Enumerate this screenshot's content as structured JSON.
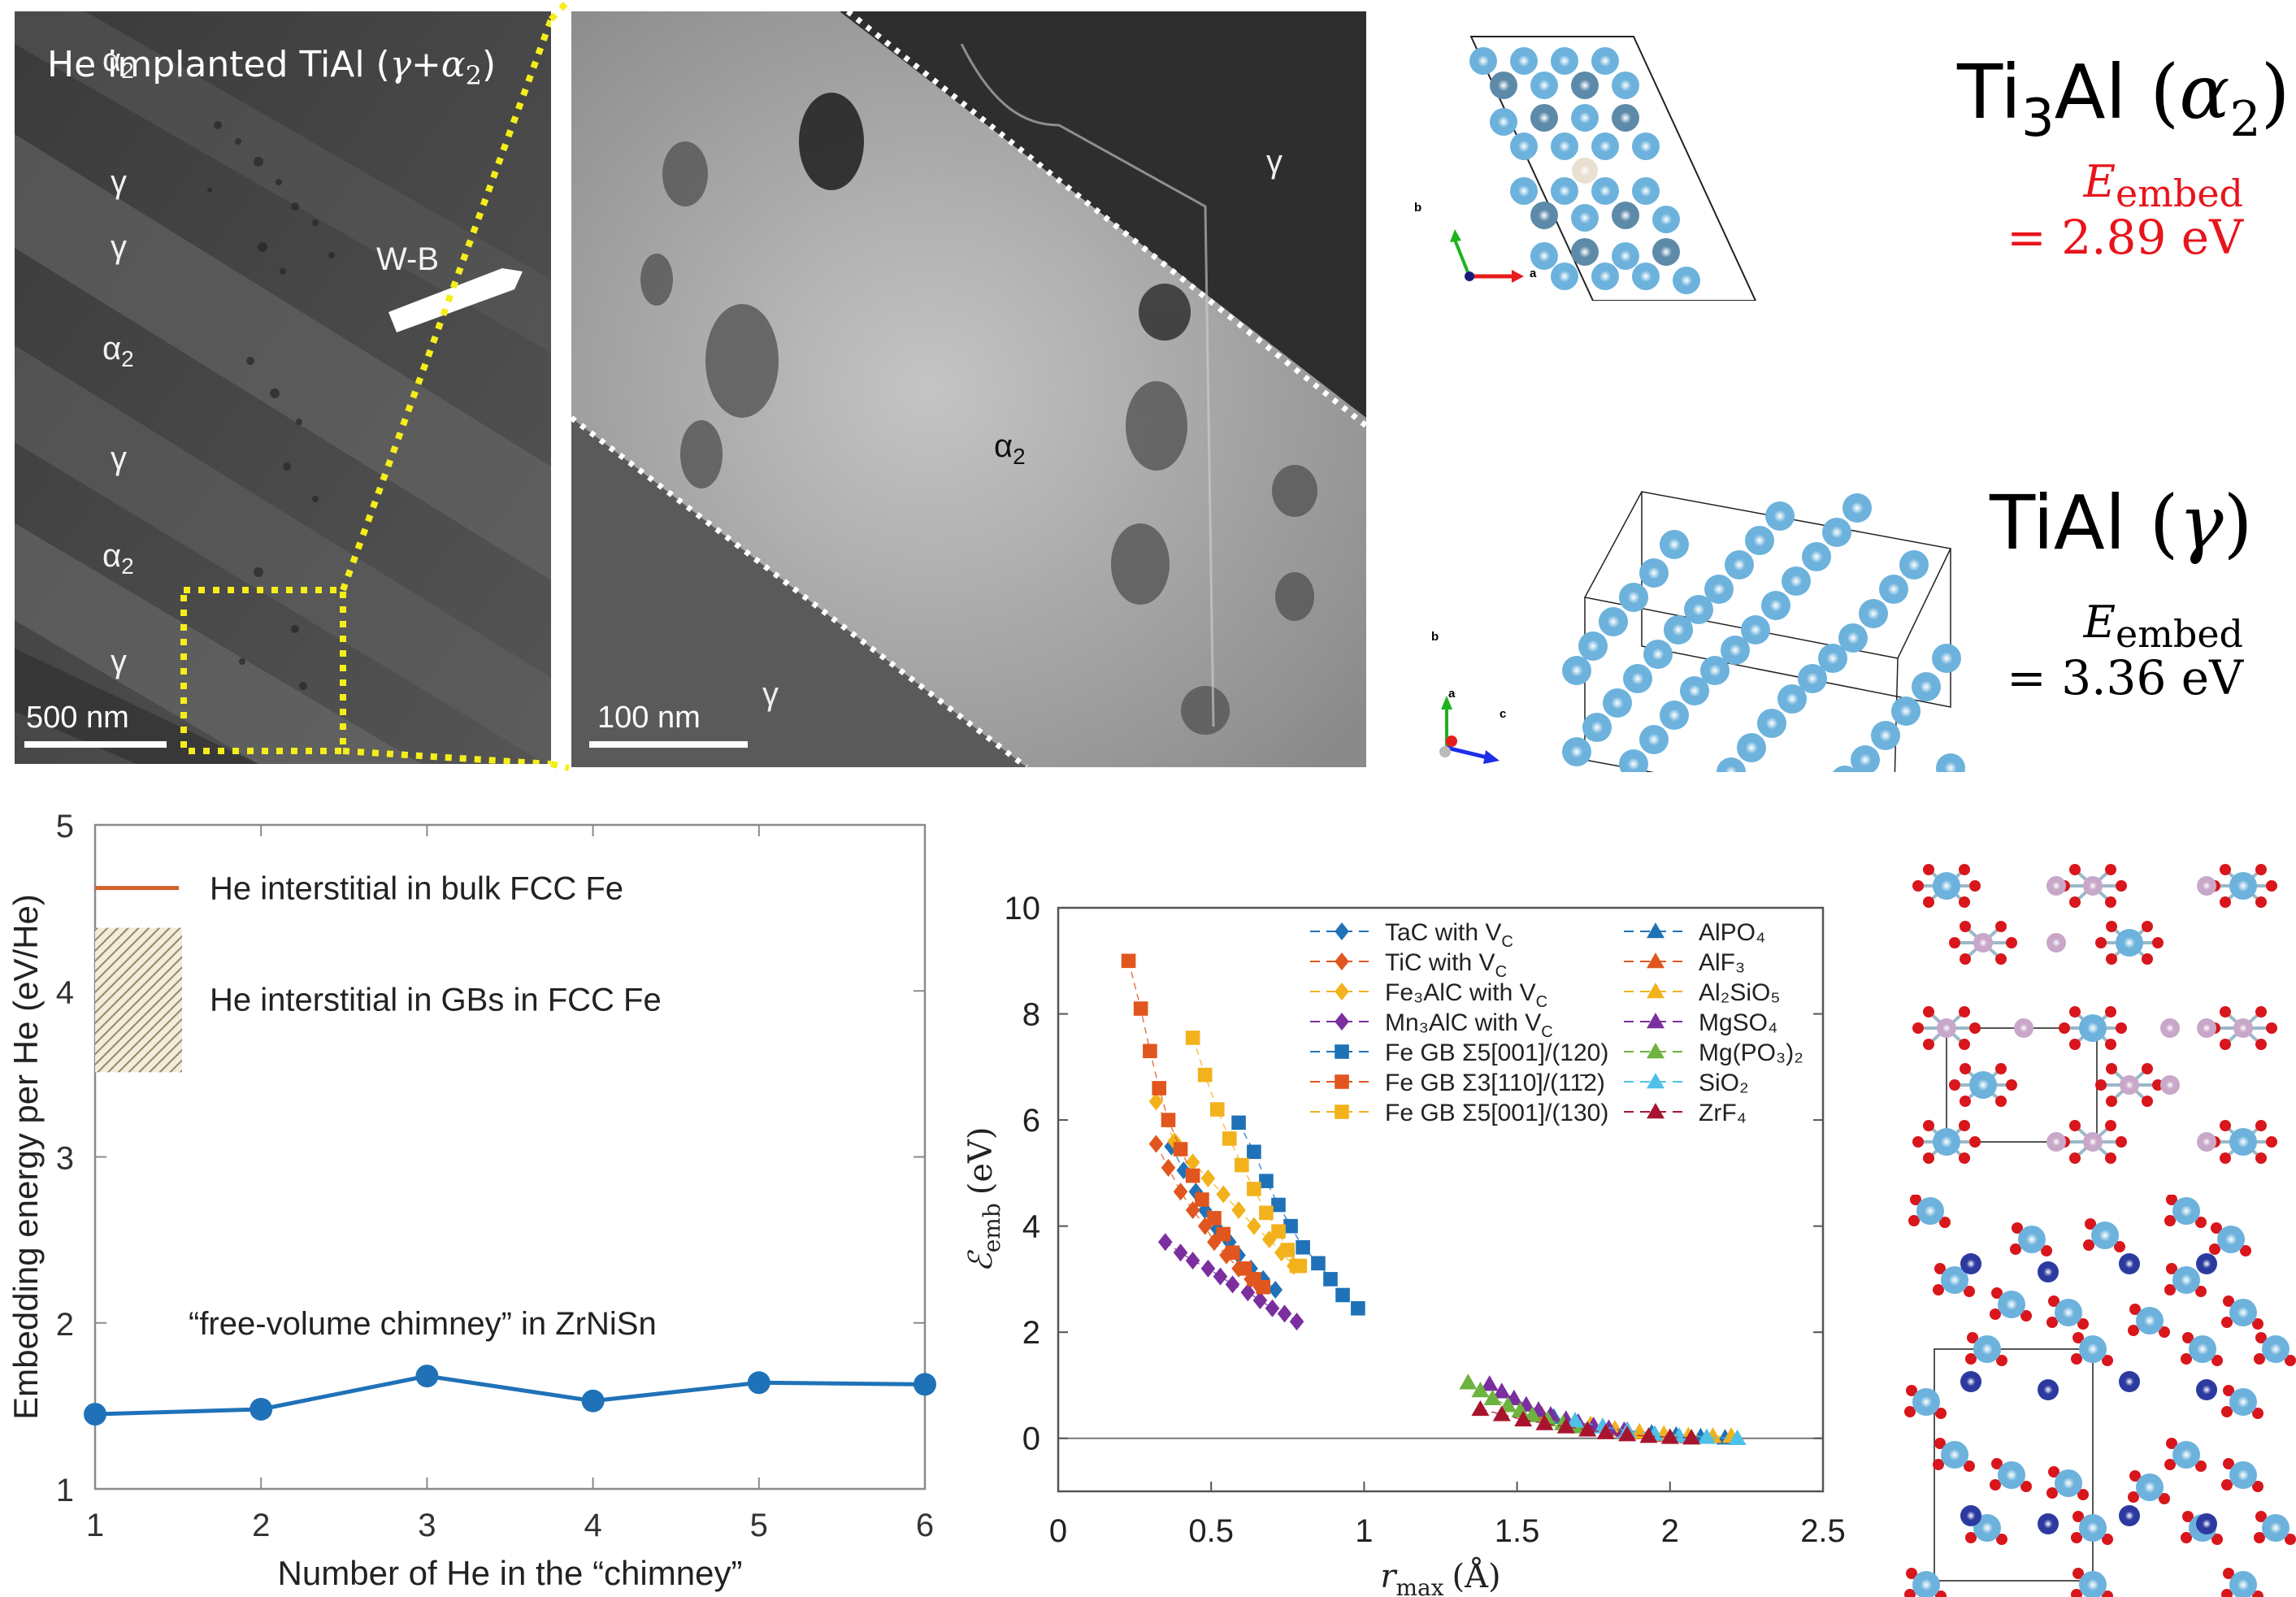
{
  "panels": {
    "tem_overview": {
      "title": "He implanted TiAl (γ+α₂)",
      "title_main": "He implanted TiAl (",
      "title_gamma": "γ",
      "title_plus": "+",
      "title_alpha": "α",
      "title_alpha_sub": "2",
      "title_close": ")",
      "phase_labels": [
        {
          "base": "α",
          "sub": "2"
        },
        {
          "base": "γ",
          "sub": ""
        },
        {
          "base": "γ",
          "sub": ""
        },
        {
          "base": "α",
          "sub": "2"
        },
        {
          "base": "γ",
          "sub": ""
        },
        {
          "base": "α",
          "sub": "2"
        },
        {
          "base": "γ",
          "sub": ""
        }
      ],
      "marker_label": "W-B",
      "scale_bar": "500 nm"
    },
    "tem_zoom": {
      "phase_labels": [
        {
          "base": "γ",
          "sub": ""
        },
        {
          "base": "α",
          "sub": "2"
        },
        {
          "base": "γ",
          "sub": ""
        }
      ],
      "scale_bar": "100 nm"
    },
    "ti3al": {
      "formula_ti": "Ti",
      "formula_sub": "3",
      "formula_al": "Al ",
      "phase_open": "(",
      "phase": "α",
      "phase_sub": "2",
      "phase_close": ")",
      "energy_symbol": "E",
      "energy_sub": "embed",
      "energy_value": "= 2.89 eV",
      "energy_color": "#e8141b",
      "axes": [
        "b",
        "a"
      ]
    },
    "tial": {
      "formula": "TiAl ",
      "phase_open": "(",
      "phase": "γ",
      "phase_close": ")",
      "energy_symbol": "E",
      "energy_sub": "embed",
      "energy_value": "= 3.36 eV",
      "energy_color": "#000000",
      "axes": [
        "b",
        "a",
        "c"
      ]
    }
  },
  "colors": {
    "atom_ti": "#6cb2dc",
    "atom_ti_dark": "#5d8aa8",
    "atom_he": "#e8e0d0",
    "atom_o": "#d8161b",
    "atom_p": "#c8a7c8",
    "atom_n": "#2c3aa0"
  },
  "chart_data": [
    {
      "type": "line",
      "title": "",
      "xlabel": "Number of He in the “chimney”",
      "ylabel": "Embedding energy per He (eV/He)",
      "xlim": [
        1,
        6
      ],
      "ylim": [
        1,
        5
      ],
      "xticks": [
        1,
        2,
        3,
        4,
        5,
        6
      ],
      "yticks": [
        1,
        2,
        3,
        4,
        5
      ],
      "series": [
        {
          "name": "“free-volume chimney” in ZrNiSn",
          "color": "#1f72b8",
          "x": [
            1,
            2,
            3,
            4,
            5,
            6
          ],
          "y": [
            1.45,
            1.48,
            1.68,
            1.53,
            1.64,
            1.63
          ]
        }
      ],
      "reference_line": {
        "name": "He interstitial in bulk FCC Fe",
        "value": 4.62,
        "color": "#d4622a"
      },
      "reference_band": {
        "name": "He interstitial in GBs in FCC Fe",
        "min": 3.51,
        "max": 4.38,
        "color": "#a08a66"
      },
      "annotations": [
        "He interstitial in bulk FCC Fe",
        "He interstitial in GBs in FCC Fe",
        "“free-volume chimney” in ZrNiSn"
      ]
    },
    {
      "type": "scatter",
      "title": "",
      "xlabel": "r_max (Å)",
      "xlabel_main": "r",
      "xlabel_sub": "max",
      "xlabel_unit": "(Å)",
      "ylabel": "ℰ_emb (eV)",
      "ylabel_main": "ℰ",
      "ylabel_sub": "emb",
      "ylabel_unit": "(eV)",
      "xlim": [
        0,
        2.5
      ],
      "ylim": [
        -1,
        10
      ],
      "xticks": [
        0,
        0.5,
        1,
        1.5,
        2,
        2.5
      ],
      "xticklabels": [
        "0",
        "0.5",
        "1",
        "1.5",
        "2",
        "2.5"
      ],
      "yticks": [
        0,
        2,
        4,
        6,
        8,
        10
      ],
      "zero_line": true,
      "legend_position": "top-right",
      "series": [
        {
          "name": "TaC with V_C",
          "label_main": "TaC with V",
          "label_sub": "C",
          "marker": "diamond",
          "color": "#1f72b8",
          "x": [
            0.37,
            0.41,
            0.45,
            0.48,
            0.52,
            0.56,
            0.59,
            0.63,
            0.67,
            0.71
          ],
          "y": [
            5.5,
            5.05,
            4.65,
            4.3,
            3.95,
            3.7,
            3.45,
            3.2,
            3.0,
            2.8
          ]
        },
        {
          "name": "TiC with V_C",
          "label_main": "TiC with V",
          "label_sub": "C",
          "marker": "diamond",
          "color": "#e0561e",
          "x": [
            0.32,
            0.36,
            0.4,
            0.44,
            0.48,
            0.51,
            0.55,
            0.59,
            0.63,
            0.66
          ],
          "y": [
            5.55,
            5.1,
            4.65,
            4.3,
            4.0,
            3.7,
            3.45,
            3.2,
            3.0,
            2.85
          ]
        },
        {
          "name": "Fe3AlC with V_C",
          "label_main": "Fe₃AlC with V",
          "label_sub": "C",
          "marker": "diamond",
          "color": "#f2b21c",
          "x": [
            0.32,
            0.38,
            0.44,
            0.49,
            0.54,
            0.59,
            0.64,
            0.69,
            0.73,
            0.77
          ],
          "y": [
            6.35,
            5.6,
            5.2,
            4.9,
            4.6,
            4.3,
            4.0,
            3.75,
            3.5,
            3.25
          ]
        },
        {
          "name": "Mn3AlC with V_C",
          "label_main": "Mn₃AlC with V",
          "label_sub": "C",
          "marker": "diamond",
          "color": "#7b2f9e",
          "x": [
            0.35,
            0.4,
            0.44,
            0.49,
            0.53,
            0.57,
            0.62,
            0.66,
            0.7,
            0.74,
            0.78
          ],
          "y": [
            3.7,
            3.5,
            3.35,
            3.2,
            3.05,
            2.9,
            2.75,
            2.6,
            2.45,
            2.35,
            2.2
          ]
        },
        {
          "name": "Fe GB Σ5[001]/(120)",
          "label_main": "Fe GB Σ5[001]/(120)",
          "label_sub": "",
          "marker": "square",
          "color": "#1f72b8",
          "x": [
            0.59,
            0.64,
            0.68,
            0.72,
            0.76,
            0.8,
            0.85,
            0.89,
            0.93,
            0.98
          ],
          "y": [
            5.95,
            5.4,
            4.85,
            4.4,
            4.0,
            3.6,
            3.3,
            3.0,
            2.7,
            2.45
          ]
        },
        {
          "name": "Fe GB Σ3[110]/(1-12)",
          "label_main": "Fe GB Σ3[110]/(11̄2)",
          "label_sub": "",
          "marker": "square",
          "color": "#e0561e",
          "x": [
            0.23,
            0.27,
            0.3,
            0.33,
            0.36,
            0.4,
            0.44,
            0.47,
            0.51,
            0.54,
            0.57,
            0.61,
            0.64,
            0.67
          ],
          "y": [
            9.0,
            8.1,
            7.3,
            6.6,
            6.0,
            5.45,
            4.95,
            4.5,
            4.15,
            3.85,
            3.5,
            3.2,
            3.0,
            2.85
          ]
        },
        {
          "name": "Fe GB Σ5[001]/(130)",
          "label_main": "Fe GB Σ5[001]/(130)",
          "label_sub": "",
          "marker": "square",
          "color": "#f2b21c",
          "x": [
            0.44,
            0.48,
            0.52,
            0.56,
            0.6,
            0.64,
            0.68,
            0.72,
            0.75,
            0.78,
            0.79
          ],
          "y": [
            7.55,
            6.85,
            6.2,
            5.65,
            5.15,
            4.7,
            4.25,
            3.9,
            3.55,
            3.25,
            3.25
          ]
        },
        {
          "name": "AlPO4",
          "label_main": "AlPO₄",
          "label_sub": "",
          "marker": "triangle",
          "color": "#1f72b8",
          "x": [
            1.62,
            1.7,
            1.78,
            1.86,
            1.94,
            2.02,
            2.1,
            2.18
          ],
          "y": [
            0.4,
            0.3,
            0.22,
            0.15,
            0.1,
            0.06,
            0.03,
            0.01
          ]
        },
        {
          "name": "AlF3",
          "label_main": "AlF₃",
          "label_sub": "",
          "marker": "triangle",
          "color": "#e0561e",
          "x": [
            1.58,
            1.66,
            1.74,
            1.82,
            1.9,
            1.98,
            2.06
          ],
          "y": [
            0.45,
            0.34,
            0.25,
            0.17,
            0.11,
            0.06,
            0.03
          ]
        },
        {
          "name": "Al2SiO5",
          "label_main": "Al₂SiO₅",
          "label_sub": "",
          "marker": "triangle",
          "color": "#f2b21c",
          "x": [
            1.74,
            1.82,
            1.9,
            1.98,
            2.06,
            2.14,
            2.2
          ],
          "y": [
            0.26,
            0.18,
            0.12,
            0.08,
            0.05,
            0.04,
            0.04
          ]
        },
        {
          "name": "MgSO4",
          "label_main": "MgSO₄",
          "label_sub": "",
          "marker": "triangle",
          "color": "#7b2f9e",
          "x": [
            1.41,
            1.45,
            1.49,
            1.53,
            1.57,
            1.61,
            1.66,
            1.7,
            1.75,
            1.8,
            1.85
          ],
          "y": [
            1.02,
            0.88,
            0.75,
            0.63,
            0.53,
            0.44,
            0.36,
            0.3,
            0.24,
            0.19,
            0.15
          ]
        },
        {
          "name": "Mg(PO3)2",
          "label_main": "Mg(PO₃)₂",
          "label_sub": "",
          "marker": "triangle",
          "color": "#6db33f",
          "x": [
            1.34,
            1.38,
            1.42,
            1.47,
            1.51,
            1.55,
            1.6,
            1.65,
            1.7
          ],
          "y": [
            1.05,
            0.9,
            0.75,
            0.62,
            0.52,
            0.43,
            0.35,
            0.28,
            0.22
          ]
        },
        {
          "name": "SiO2",
          "label_main": "SiO₂",
          "label_sub": "",
          "marker": "triangle",
          "color": "#4fc0e8",
          "x": [
            1.69,
            1.78,
            1.86,
            1.95,
            2.03,
            2.12,
            2.22
          ],
          "y": [
            0.33,
            0.22,
            0.14,
            0.08,
            0.04,
            0.02,
            0.0
          ]
        },
        {
          "name": "ZrF4",
          "label_main": "ZrF₄",
          "label_sub": "",
          "marker": "triangle",
          "color": "#a8142e",
          "x": [
            1.38,
            1.45,
            1.52,
            1.59,
            1.66,
            1.73,
            1.79,
            1.86,
            1.93,
            2.0,
            2.07
          ],
          "y": [
            0.55,
            0.45,
            0.35,
            0.28,
            0.22,
            0.16,
            0.11,
            0.07,
            0.04,
            0.02,
            0.01
          ]
        }
      ]
    }
  ]
}
